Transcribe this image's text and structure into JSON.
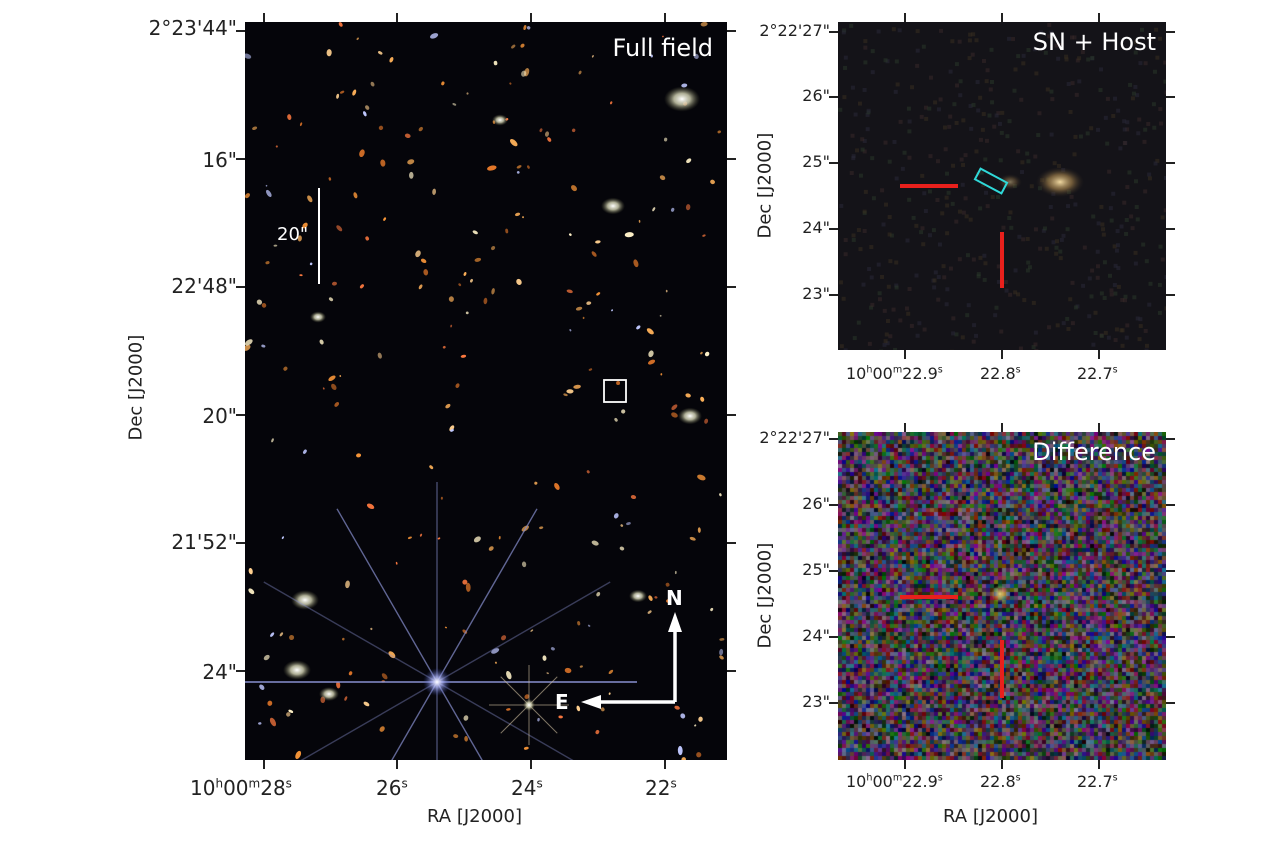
{
  "full_field": {
    "title": "Full field",
    "dec_ticks": [
      "2°23'44\"",
      "16\"",
      "22'48\"",
      "20\"",
      "21'52\"",
      "24\""
    ],
    "ra_ticks": [
      {
        "main": "10",
        "h": "h",
        "mid": "00",
        "m": "m",
        "sec": "28",
        "s": "s"
      },
      {
        "main": "",
        "h": "",
        "mid": "",
        "m": "",
        "sec": "26",
        "s": "s"
      },
      {
        "main": "",
        "h": "",
        "mid": "",
        "m": "",
        "sec": "24",
        "s": "s"
      },
      {
        "main": "",
        "h": "",
        "mid": "",
        "m": "",
        "sec": "22",
        "s": "s"
      }
    ],
    "xlabel": "RA [J2000]",
    "ylabel": "Dec [J2000]",
    "scale_bar_label": "20\"",
    "compass_n": "N",
    "compass_e": "E"
  },
  "sn_host": {
    "title": "SN + Host",
    "dec_ticks": [
      "2°22'27\"",
      "26\"",
      "25\"",
      "24\"",
      "23\""
    ],
    "ra_ticks": [
      "22.9",
      "22.8",
      "22.7"
    ],
    "ra_first_prefix": "10",
    "ylabel": "Dec [J2000]"
  },
  "difference": {
    "title": "Difference",
    "dec_ticks": [
      "2°22'27\"",
      "26\"",
      "25\"",
      "24\"",
      "23\""
    ],
    "ra_ticks": [
      "22.9",
      "22.8",
      "22.7"
    ],
    "ra_first_prefix": "10",
    "xlabel": "RA [J2000]",
    "ylabel": "Dec [J2000]"
  },
  "colors": {
    "marker": "#e8201c",
    "box_cyan": "#2fd8d8",
    "sky": "#05050a"
  }
}
